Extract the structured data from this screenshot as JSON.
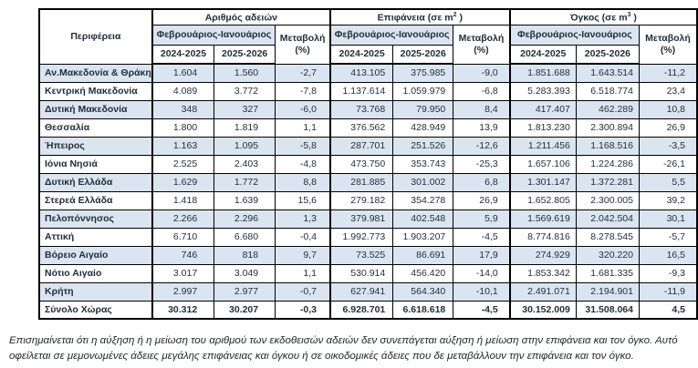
{
  "header": {
    "region": "Περιφέρεια",
    "period": "Φεβρουάριος-Ιανουάριος",
    "year1": "2024-2025",
    "year2": "2025-2026",
    "change_line1": "Μεταβολή",
    "change_line2": "(%)",
    "groups": [
      {
        "title_prefix": "Αριθμός αδειών",
        "sup": "",
        "suffix": ""
      },
      {
        "title_prefix": "Επιφάνεια (σε m",
        "sup": "2",
        "suffix": " )"
      },
      {
        "title_prefix": "Όγκος (σε m",
        "sup": "3",
        "suffix": " )"
      }
    ]
  },
  "chart_data": {
    "type": "table",
    "columns": [
      "Περιφέρεια",
      "Αριθμός αδειών 2024-2025",
      "Αριθμός αδειών 2025-2026",
      "Αριθμός αδειών Μεταβολή (%)",
      "Επιφάνεια (σε m2) 2024-2025",
      "Επιφάνεια (σε m2) 2025-2026",
      "Επιφάνεια Μεταβολή (%)",
      "Όγκος (σε m3) 2024-2025",
      "Όγκος (σε m3) 2025-2026",
      "Όγκος Μεταβολή (%)"
    ]
  },
  "rows": [
    {
      "region": "Αν.Μακεδονία & Θράκη",
      "values": [
        "1.604",
        "1.560",
        "-2,7",
        "413.105",
        "375.985",
        "-9,0",
        "1.851.688",
        "1.643.514",
        "-11,2"
      ]
    },
    {
      "region": "Κεντρική Μακεδονία",
      "values": [
        "4.089",
        "3.772",
        "-7,8",
        "1.137.614",
        "1.059.979",
        "-6,8",
        "5.283.393",
        "6.518.774",
        "23,4"
      ]
    },
    {
      "region": "Δυτική Μακεδονία",
      "values": [
        "348",
        "327",
        "-6,0",
        "73.768",
        "79.950",
        "8,4",
        "417.407",
        "462.289",
        "10,8"
      ]
    },
    {
      "region": "Θεσσαλία",
      "values": [
        "1.800",
        "1.819",
        "1,1",
        "376.562",
        "428.949",
        "13,9",
        "1.813.230",
        "2.300.894",
        "26,9"
      ]
    },
    {
      "region": "Ήπειρος",
      "values": [
        "1.163",
        "1.095",
        "-5,8",
        "287.701",
        "251.526",
        "-12,6",
        "1.211.456",
        "1.168.516",
        "-3,5"
      ]
    },
    {
      "region": "Ιόνια Νησιά",
      "values": [
        "2.525",
        "2.403",
        "-4,8",
        "473.750",
        "353.743",
        "-25,3",
        "1.657.106",
        "1.224.286",
        "-26,1"
      ]
    },
    {
      "region": "Δυτική Ελλάδα",
      "values": [
        "1.629",
        "1.772",
        "8,8",
        "281.885",
        "301.002",
        "6,8",
        "1.301.147",
        "1.372.281",
        "5,5"
      ]
    },
    {
      "region": "Στερεά Ελλάδα",
      "values": [
        "1.418",
        "1.639",
        "15,6",
        "279.182",
        "354.278",
        "26,9",
        "1.652.805",
        "2.300.005",
        "39,2"
      ]
    },
    {
      "region": "Πελοπόννησος",
      "values": [
        "2.266",
        "2.296",
        "1,3",
        "379.981",
        "402.548",
        "5,9",
        "1.569.619",
        "2.042.504",
        "30,1"
      ]
    },
    {
      "region": "Αττική",
      "values": [
        "6.710",
        "6.680",
        "-0,4",
        "1.992.773",
        "1.903.207",
        "-4,5",
        "8.774.816",
        "8.278.545",
        "-5,7"
      ]
    },
    {
      "region": "Βόρειο Αιγαίο",
      "values": [
        "746",
        "818",
        "9,7",
        "73.525",
        "86.691",
        "17,9",
        "274.929",
        "320.220",
        "16,5"
      ]
    },
    {
      "region": "Νότιο Αιγαίο",
      "values": [
        "3.017",
        "3.049",
        "1,1",
        "530.914",
        "456.420",
        "-14,0",
        "1.853.342",
        "1.681.335",
        "-9,3"
      ]
    },
    {
      "region": "Κρήτη",
      "values": [
        "2.997",
        "2.977",
        "-0,7",
        "627.941",
        "564.340",
        "-10,1",
        "2.491.071",
        "2.194.901",
        "-11,9"
      ]
    },
    {
      "region": "Σύνολο Χώρας",
      "values": [
        "30.312",
        "30.207",
        "-0,3",
        "6.928.701",
        "6.618.618",
        "-4,5",
        "30.152.009",
        "31.508.064",
        "4,5"
      ],
      "total": true
    }
  ],
  "footnote": "Επισημαίνεται ότι η αύξηση ή η μείωση του αριθμού των εκδοθεισών αδειών δεν συνεπάγεται αύξηση ή μείωση στην επιφάνεια και τον όγκο. Αυτό οφείλεται σε μεμονωμένες άδειες μεγάλης επιφάνειας και όγκου ή σε οικοδομικές άδειες που δε μεταβάλλουν την επιφάνεια και τον όγκο.",
  "colors": {
    "band": "#dbe5f1",
    "border": "#000000",
    "text": "#1f2d3a"
  }
}
